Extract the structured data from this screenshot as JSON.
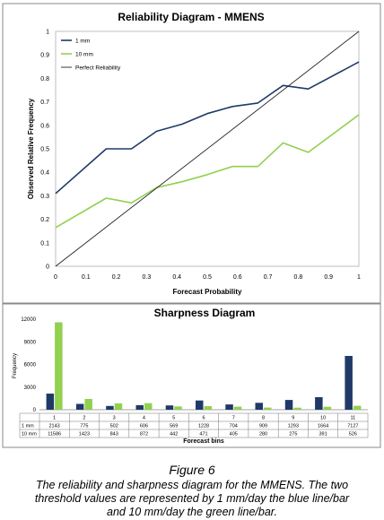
{
  "figure": {
    "title": "Figure 6",
    "caption_lines": [
      "The reliability and sharpness diagram for the MMENS. The two",
      "threshold values are represented by 1 mm/day the blue line/bar",
      "and 10 mm/day the green line/bar."
    ]
  },
  "colors": {
    "series1": "#1f3a68",
    "series2": "#92d050",
    "perfect": "#222222"
  },
  "chart_data": [
    {
      "type": "line",
      "title": "Reliability Diagram - MMENS",
      "xlabel": "Forecast Probability",
      "ylabel": "Observed Relative Frequency",
      "xlim": [
        0,
        1
      ],
      "ylim": [
        0,
        1
      ],
      "xticks": [
        "0",
        "0.1",
        "0.2",
        "0.3",
        "0.4",
        "0.5",
        "0.6",
        "0.7",
        "0.8",
        "0.9",
        "1"
      ],
      "yticks": [
        "0",
        "0.1",
        "0.2",
        "0.3",
        "0.4",
        "0.5",
        "0.6",
        "0.7",
        "0.8",
        "0.9",
        "1"
      ],
      "grid": false,
      "legend": "top-left",
      "series": [
        {
          "name": "1 mm",
          "color": "#1f3a68",
          "x": [
            0,
            0.167,
            0.25,
            0.333,
            0.417,
            0.5,
            0.583,
            0.667,
            0.75,
            0.833,
            1
          ],
          "y": [
            0.31,
            0.5,
            0.5,
            0.575,
            0.605,
            0.65,
            0.68,
            0.695,
            0.77,
            0.755,
            0.87
          ]
        },
        {
          "name": "10 mm",
          "color": "#92d050",
          "x": [
            0,
            0.167,
            0.25,
            0.333,
            0.417,
            0.5,
            0.583,
            0.667,
            0.75,
            0.833,
            1
          ],
          "y": [
            0.165,
            0.29,
            0.27,
            0.335,
            0.36,
            0.39,
            0.425,
            0.425,
            0.525,
            0.485,
            0.645
          ]
        },
        {
          "name": "Perfect Reliability",
          "color": "#222222",
          "x": [
            0,
            1
          ],
          "y": [
            0,
            1
          ]
        }
      ]
    },
    {
      "type": "bar",
      "title": "Sharpness Diagram",
      "xlabel": "Forecast bins",
      "ylabel": "Frequency",
      "ylim": [
        0,
        12000
      ],
      "yticks": [
        "0",
        "3000",
        "6000",
        "9000",
        "12000"
      ],
      "categories": [
        "1",
        "2",
        "3",
        "4",
        "5",
        "6",
        "7",
        "8",
        "9",
        "10",
        "11"
      ],
      "grid": false,
      "series": [
        {
          "name": "1 mm",
          "color": "#1f3a68",
          "values": [
            2143,
            775,
            502,
            606,
            569,
            1228,
            704,
            909,
            1293,
            1664,
            7127
          ]
        },
        {
          "name": "10 mm",
          "color": "#92d050",
          "values": [
            11586,
            1423,
            843,
            872,
            442,
            471,
            405,
            280,
            275,
            391,
            526
          ]
        }
      ],
      "table": {
        "row_labels": [
          "1 mm",
          "10 mm"
        ],
        "rows": [
          [
            "2143",
            "775",
            "502",
            "606",
            "569",
            "1228",
            "704",
            "909",
            "1293",
            "1664",
            "7127"
          ],
          [
            "11586",
            "1423",
            "843",
            "872",
            "442",
            "471",
            "405",
            "280",
            "275",
            "391",
            "526"
          ]
        ]
      }
    }
  ]
}
